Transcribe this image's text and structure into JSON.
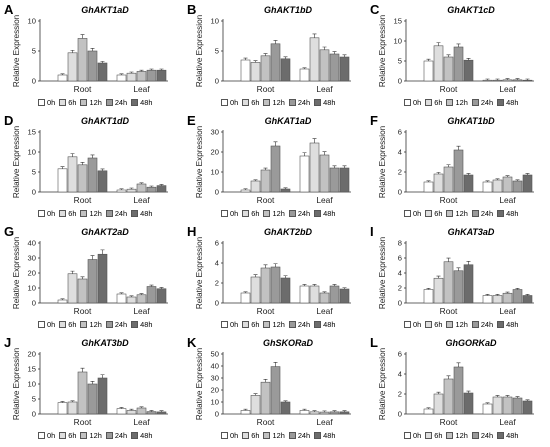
{
  "figure": {
    "groups": [
      "Root",
      "Leaf"
    ],
    "legend": [
      "0h",
      "6h",
      "12h",
      "24h",
      "48h"
    ],
    "series_colors": [
      "#ffffff",
      "#dedede",
      "#c2c2c2",
      "#9a9a9a",
      "#6c6c6c"
    ]
  },
  "chart_data": [
    {
      "type": "bar",
      "letter": "A",
      "title": "GhAKT1aD",
      "ylabel": "Relative Expression",
      "categories": [
        "Root",
        "Leaf"
      ],
      "ylim": [
        0,
        10
      ],
      "yticks": [
        0,
        5,
        10
      ],
      "series": [
        {
          "name": "0h",
          "values": [
            1.0,
            1.0
          ]
        },
        {
          "name": "6h",
          "values": [
            4.7,
            1.3
          ]
        },
        {
          "name": "12h",
          "values": [
            7.1,
            1.6
          ]
        },
        {
          "name": "24h",
          "values": [
            5.0,
            1.8
          ]
        },
        {
          "name": "48h",
          "values": [
            3.0,
            1.8
          ]
        }
      ]
    },
    {
      "type": "bar",
      "letter": "B",
      "title": "GhAKT1bD",
      "ylabel": "Relative Expression",
      "categories": [
        "Root",
        "Leaf"
      ],
      "ylim": [
        0,
        10
      ],
      "yticks": [
        0,
        5,
        10
      ],
      "series": [
        {
          "name": "0h",
          "values": [
            3.5,
            2.0
          ]
        },
        {
          "name": "6h",
          "values": [
            3.1,
            7.2
          ]
        },
        {
          "name": "12h",
          "values": [
            4.2,
            5.2
          ]
        },
        {
          "name": "24h",
          "values": [
            6.2,
            4.5
          ]
        },
        {
          "name": "48h",
          "values": [
            3.7,
            4.0
          ]
        }
      ]
    },
    {
      "type": "bar",
      "letter": "C",
      "title": "GhAKT1cD",
      "ylabel": "Relative Expression",
      "categories": [
        "Root",
        "Leaf"
      ],
      "ylim": [
        0,
        15
      ],
      "yticks": [
        0,
        5,
        10,
        15
      ],
      "series": [
        {
          "name": "0h",
          "values": [
            5.0,
            0.2
          ]
        },
        {
          "name": "6h",
          "values": [
            8.8,
            0.2
          ]
        },
        {
          "name": "12h",
          "values": [
            6.0,
            0.3
          ]
        },
        {
          "name": "24h",
          "values": [
            8.5,
            0.3
          ]
        },
        {
          "name": "48h",
          "values": [
            5.2,
            0.2
          ]
        }
      ]
    },
    {
      "type": "bar",
      "letter": "D",
      "title": "GhAKT1dD",
      "ylabel": "Relative Expression",
      "categories": [
        "Root",
        "Leaf"
      ],
      "ylim": [
        0,
        15
      ],
      "yticks": [
        0,
        5,
        10,
        15
      ],
      "series": [
        {
          "name": "0h",
          "values": [
            5.8,
            0.5
          ]
        },
        {
          "name": "6h",
          "values": [
            8.8,
            0.7
          ]
        },
        {
          "name": "12h",
          "values": [
            6.8,
            2.0
          ]
        },
        {
          "name": "24h",
          "values": [
            8.5,
            1.2
          ]
        },
        {
          "name": "48h",
          "values": [
            5.3,
            1.6
          ]
        }
      ]
    },
    {
      "type": "bar",
      "letter": "E",
      "title": "GhKAT1aD",
      "ylabel": "Relative Expression",
      "categories": [
        "Root",
        "Leaf"
      ],
      "ylim": [
        0,
        30
      ],
      "yticks": [
        0,
        10,
        20,
        30
      ],
      "series": [
        {
          "name": "0h",
          "values": [
            1.0,
            18.0
          ]
        },
        {
          "name": "6h",
          "values": [
            5.5,
            24.5
          ]
        },
        {
          "name": "12h",
          "values": [
            11.0,
            18.5
          ]
        },
        {
          "name": "24h",
          "values": [
            23.0,
            12.0
          ]
        },
        {
          "name": "48h",
          "values": [
            1.5,
            12.0
          ]
        }
      ]
    },
    {
      "type": "bar",
      "letter": "F",
      "title": "GhKAT1bD",
      "ylabel": "Relative Expression",
      "categories": [
        "Root",
        "Leaf"
      ],
      "ylim": [
        0,
        6
      ],
      "yticks": [
        0,
        2,
        4,
        6
      ],
      "series": [
        {
          "name": "0h",
          "values": [
            1.0,
            1.0
          ]
        },
        {
          "name": "6h",
          "values": [
            1.8,
            1.2
          ]
        },
        {
          "name": "12h",
          "values": [
            2.5,
            1.5
          ]
        },
        {
          "name": "24h",
          "values": [
            4.2,
            1.1
          ]
        },
        {
          "name": "48h",
          "values": [
            1.7,
            1.7
          ]
        }
      ]
    },
    {
      "type": "bar",
      "letter": "G",
      "title": "GhAKT2aD",
      "ylabel": "Relative Expression",
      "categories": [
        "Root",
        "Leaf"
      ],
      "ylim": [
        0,
        40
      ],
      "yticks": [
        0,
        10,
        20,
        30,
        40
      ],
      "series": [
        {
          "name": "0h",
          "values": [
            2.0,
            6.0
          ]
        },
        {
          "name": "6h",
          "values": [
            19.5,
            4.0
          ]
        },
        {
          "name": "12h",
          "values": [
            16.0,
            5.5
          ]
        },
        {
          "name": "24h",
          "values": [
            29.0,
            11.0
          ]
        },
        {
          "name": "48h",
          "values": [
            32.5,
            9.5
          ]
        }
      ]
    },
    {
      "type": "bar",
      "letter": "H",
      "title": "GhAKT2bD",
      "ylabel": "Relative Expression",
      "categories": [
        "Root",
        "Leaf"
      ],
      "ylim": [
        0,
        6
      ],
      "yticks": [
        0,
        2,
        4,
        6
      ],
      "series": [
        {
          "name": "0h",
          "values": [
            1.0,
            1.7
          ]
        },
        {
          "name": "6h",
          "values": [
            2.6,
            1.7
          ]
        },
        {
          "name": "12h",
          "values": [
            3.5,
            1.0
          ]
        },
        {
          "name": "24h",
          "values": [
            3.6,
            1.7
          ]
        },
        {
          "name": "48h",
          "values": [
            2.5,
            1.4
          ]
        }
      ]
    },
    {
      "type": "bar",
      "letter": "I",
      "title": "GhKAT3aD",
      "ylabel": "Relative Expression",
      "categories": [
        "Root",
        "Leaf"
      ],
      "ylim": [
        0,
        8
      ],
      "yticks": [
        0,
        2,
        4,
        6,
        8
      ],
      "series": [
        {
          "name": "0h",
          "values": [
            1.8,
            1.0
          ]
        },
        {
          "name": "6h",
          "values": [
            3.3,
            1.0
          ]
        },
        {
          "name": "12h",
          "values": [
            5.5,
            1.3
          ]
        },
        {
          "name": "24h",
          "values": [
            4.3,
            1.8
          ]
        },
        {
          "name": "48h",
          "values": [
            5.1,
            1.0
          ]
        }
      ]
    },
    {
      "type": "bar",
      "letter": "J",
      "title": "GhKAT3bD",
      "ylabel": "Relative Expression",
      "categories": [
        "Root",
        "Leaf"
      ],
      "ylim": [
        0,
        20
      ],
      "yticks": [
        0,
        5,
        10,
        15,
        20
      ],
      "series": [
        {
          "name": "0h",
          "values": [
            3.8,
            1.8
          ]
        },
        {
          "name": "6h",
          "values": [
            4.0,
            1.2
          ]
        },
        {
          "name": "12h",
          "values": [
            14.0,
            2.0
          ]
        },
        {
          "name": "24h",
          "values": [
            10.0,
            0.8
          ]
        },
        {
          "name": "48h",
          "values": [
            12.0,
            0.7
          ]
        }
      ]
    },
    {
      "type": "bar",
      "letter": "K",
      "title": "GhSKORaD",
      "ylabel": "Relative Expression",
      "categories": [
        "Root",
        "Leaf"
      ],
      "ylim": [
        0,
        50
      ],
      "yticks": [
        0,
        10,
        20,
        30,
        40,
        50
      ],
      "series": [
        {
          "name": "0h",
          "values": [
            3.0,
            3.0
          ]
        },
        {
          "name": "6h",
          "values": [
            15.5,
            1.8
          ]
        },
        {
          "name": "12h",
          "values": [
            26.5,
            1.6
          ]
        },
        {
          "name": "24h",
          "values": [
            39.5,
            1.8
          ]
        },
        {
          "name": "48h",
          "values": [
            10.0,
            1.8
          ]
        }
      ]
    },
    {
      "type": "bar",
      "letter": "L",
      "title": "GhGORKaD",
      "ylabel": "Relative Expression",
      "categories": [
        "Root",
        "Leaf"
      ],
      "ylim": [
        0,
        6
      ],
      "yticks": [
        0,
        2,
        4,
        6
      ],
      "series": [
        {
          "name": "0h",
          "values": [
            0.5,
            1.0
          ]
        },
        {
          "name": "6h",
          "values": [
            2.0,
            1.7
          ]
        },
        {
          "name": "12h",
          "values": [
            3.5,
            1.7
          ]
        },
        {
          "name": "24h",
          "values": [
            4.7,
            1.6
          ]
        },
        {
          "name": "48h",
          "values": [
            2.1,
            1.3
          ]
        }
      ]
    }
  ]
}
